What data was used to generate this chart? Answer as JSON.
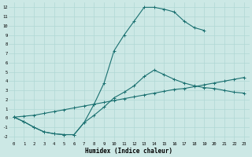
{
  "xlabel": "Humidex (Indice chaleur)",
  "background_color": "#cce8e5",
  "grid_color": "#b0d8d4",
  "line_color": "#1a7070",
  "xlim": [
    -0.5,
    23.5
  ],
  "ylim": [
    -2.5,
    12.5
  ],
  "xticks": [
    0,
    1,
    2,
    3,
    4,
    5,
    6,
    7,
    8,
    9,
    10,
    11,
    12,
    13,
    14,
    15,
    16,
    17,
    18,
    19,
    20,
    21,
    22,
    23
  ],
  "yticks": [
    -2,
    -1,
    0,
    1,
    2,
    3,
    4,
    5,
    6,
    7,
    8,
    9,
    10,
    11,
    12
  ],
  "line_top_x": [
    0,
    1,
    2,
    3,
    4,
    5,
    6,
    7,
    8,
    9,
    10,
    11,
    12,
    13,
    14,
    15,
    16,
    17,
    18,
    19
  ],
  "line_top_y": [
    0.1,
    -0.4,
    -1.0,
    -1.5,
    -1.7,
    -1.8,
    -1.8,
    -0.5,
    1.5,
    3.8,
    7.3,
    9.0,
    10.5,
    12.0,
    12.0,
    11.8,
    11.5,
    10.5,
    9.8,
    9.5
  ],
  "line_mid_x": [
    0,
    1,
    2,
    3,
    4,
    5,
    6,
    7,
    8,
    9,
    10,
    11,
    12,
    13,
    14,
    15,
    16,
    17,
    18,
    19,
    20,
    21,
    22,
    23
  ],
  "line_mid_y": [
    0.1,
    -0.4,
    -1.0,
    -1.5,
    -1.7,
    -1.8,
    -1.8,
    -0.5,
    0.3,
    1.2,
    2.2,
    2.8,
    3.5,
    4.5,
    5.2,
    4.7,
    4.2,
    3.8,
    3.5,
    3.3,
    3.2,
    3.0,
    2.8,
    2.7
  ],
  "line_bot_x": [
    0,
    1,
    2,
    3,
    4,
    5,
    6,
    7,
    8,
    9,
    10,
    11,
    12,
    13,
    14,
    15,
    16,
    17,
    18,
    19,
    20,
    21,
    22,
    23
  ],
  "line_bot_y": [
    0.1,
    0.2,
    0.3,
    0.5,
    0.7,
    0.9,
    1.1,
    1.3,
    1.5,
    1.7,
    1.9,
    2.1,
    2.3,
    2.5,
    2.7,
    2.9,
    3.1,
    3.2,
    3.4,
    3.6,
    3.8,
    4.0,
    4.2,
    4.4
  ]
}
